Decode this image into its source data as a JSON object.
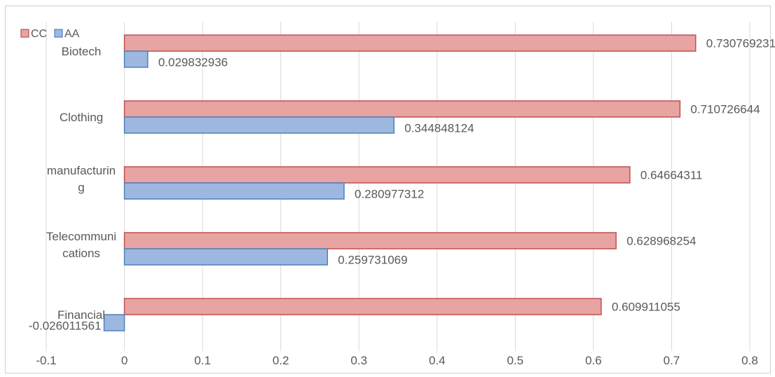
{
  "chart_data": {
    "type": "bar",
    "orientation": "horizontal",
    "categories": [
      "Biotech",
      "Clothing",
      "manufacturing",
      "Telecommunications",
      "Financial"
    ],
    "category_label_lines": [
      [
        "Biotech"
      ],
      [
        "Clothing"
      ],
      [
        "manufacturin",
        "g"
      ],
      [
        "Telecommuni",
        "cations"
      ],
      [
        "Financial"
      ]
    ],
    "series": [
      {
        "name": "CC",
        "values": [
          0.730769231,
          0.710726644,
          0.64664311,
          0.628968254,
          0.609911055
        ],
        "labels": [
          "0.730769231",
          "0.710726644",
          "0.64664311",
          "0.628968254",
          "0.609911055"
        ],
        "color": "#e8a3a3",
        "border": "#c0504d"
      },
      {
        "name": "AA",
        "values": [
          0.029832936,
          0.344848124,
          0.280977312,
          0.259731069,
          -0.026011561
        ],
        "labels": [
          "0.029832936",
          "0.344848124",
          "0.280977312",
          "0.259731069",
          "-0.026011561"
        ],
        "color": "#9db8e0",
        "border": "#4f81bd"
      }
    ],
    "x_ticks": [
      "-0.1",
      "0",
      "0.1",
      "0.2",
      "0.3",
      "0.4",
      "0.5",
      "0.6",
      "0.7",
      "0.8"
    ],
    "xlim": [
      -0.1,
      0.8
    ],
    "grid": true,
    "legend_position": "top-left",
    "title": "",
    "xlabel": "",
    "ylabel": ""
  }
}
